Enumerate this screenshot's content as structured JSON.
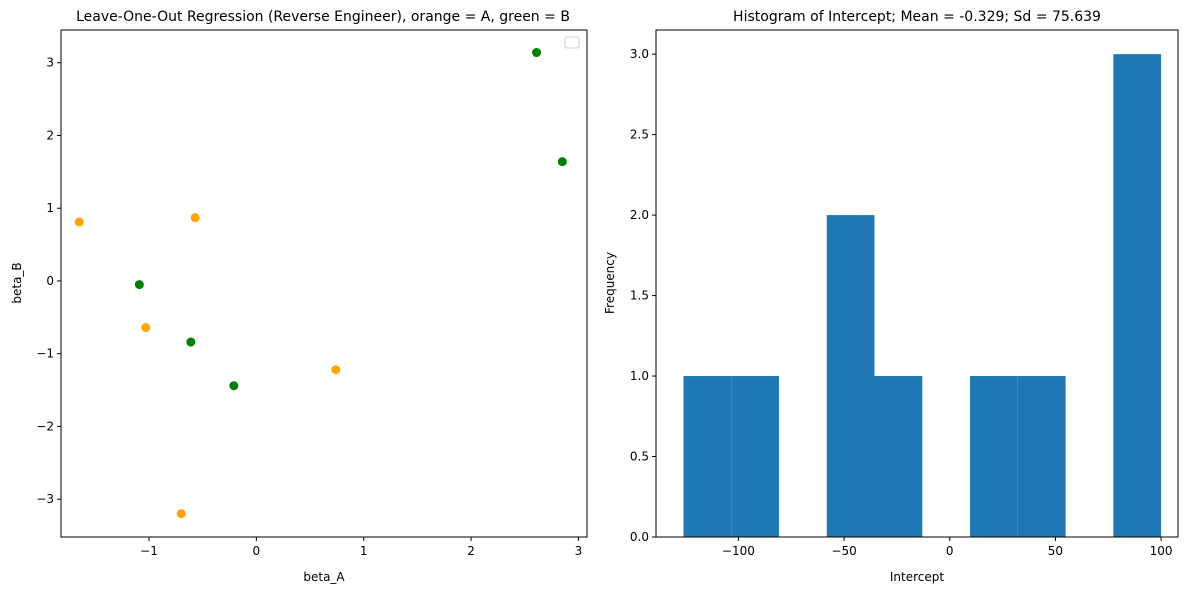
{
  "chart_data": [
    {
      "type": "scatter",
      "title": "Leave-One-Out Regression (Reverse Engineer), orange = A, green = B",
      "xlabel": "beta_A",
      "ylabel": "beta_B",
      "xlim": [
        -1.82,
        3.08
      ],
      "ylim": [
        -3.52,
        3.45
      ],
      "xticks": [
        -1,
        0,
        1,
        2,
        3
      ],
      "xtick_labels": [
        "−1",
        "0",
        "1",
        "2",
        "3"
      ],
      "yticks": [
        -3,
        -2,
        -1,
        0,
        1,
        2,
        3
      ],
      "ytick_labels": [
        "−3",
        "−2",
        "−1",
        "0",
        "1",
        "2",
        "3"
      ],
      "grid": false,
      "legend": {
        "location": "top-right",
        "entries": []
      },
      "series": [
        {
          "color": "#ffa500",
          "points": [
            {
              "x": -1.65,
              "y": 0.81
            },
            {
              "x": -0.57,
              "y": 0.87
            },
            {
              "x": -1.03,
              "y": -0.64
            },
            {
              "x": 0.74,
              "y": -1.22
            },
            {
              "x": -0.7,
              "y": -3.2
            }
          ]
        },
        {
          "color": "#008000",
          "points": [
            {
              "x": 2.61,
              "y": 3.14
            },
            {
              "x": 2.85,
              "y": 1.64
            },
            {
              "x": -1.09,
              "y": -0.05
            },
            {
              "x": -0.61,
              "y": -0.84
            },
            {
              "x": -0.21,
              "y": -1.44
            }
          ]
        }
      ]
    },
    {
      "type": "bar",
      "title": "Histogram of Intercept; Mean = -0.329; Sd = 75.639",
      "xlabel": "Intercept",
      "ylabel": "Frequency",
      "xlim": [
        -139,
        108
      ],
      "ylim": [
        0,
        3.15
      ],
      "xticks": [
        -100,
        -50,
        0,
        50,
        100
      ],
      "xtick_labels": [
        "−100",
        "−50",
        "0",
        "50",
        "100"
      ],
      "yticks": [
        0.0,
        0.5,
        1.0,
        1.5,
        2.0,
        2.5,
        3.0
      ],
      "ytick_labels": [
        "0.0",
        "0.5",
        "1.0",
        "1.5",
        "2.0",
        "2.5",
        "3.0"
      ],
      "grid": false,
      "bar_color": "#1f77b4",
      "bins": [
        {
          "x0": -126.0,
          "x1": -103.4,
          "count": 1
        },
        {
          "x0": -103.4,
          "x1": -80.8,
          "count": 1
        },
        {
          "x0": -80.8,
          "x1": -58.2,
          "count": 0
        },
        {
          "x0": -58.2,
          "x1": -35.6,
          "count": 2
        },
        {
          "x0": -35.6,
          "x1": -13.0,
          "count": 1
        },
        {
          "x0": -13.0,
          "x1": 9.6,
          "count": 0
        },
        {
          "x0": 9.6,
          "x1": 32.2,
          "count": 1
        },
        {
          "x0": 32.2,
          "x1": 54.8,
          "count": 1
        },
        {
          "x0": 54.8,
          "x1": 77.4,
          "count": 0
        },
        {
          "x0": 77.4,
          "x1": 100.0,
          "count": 3
        }
      ]
    }
  ]
}
